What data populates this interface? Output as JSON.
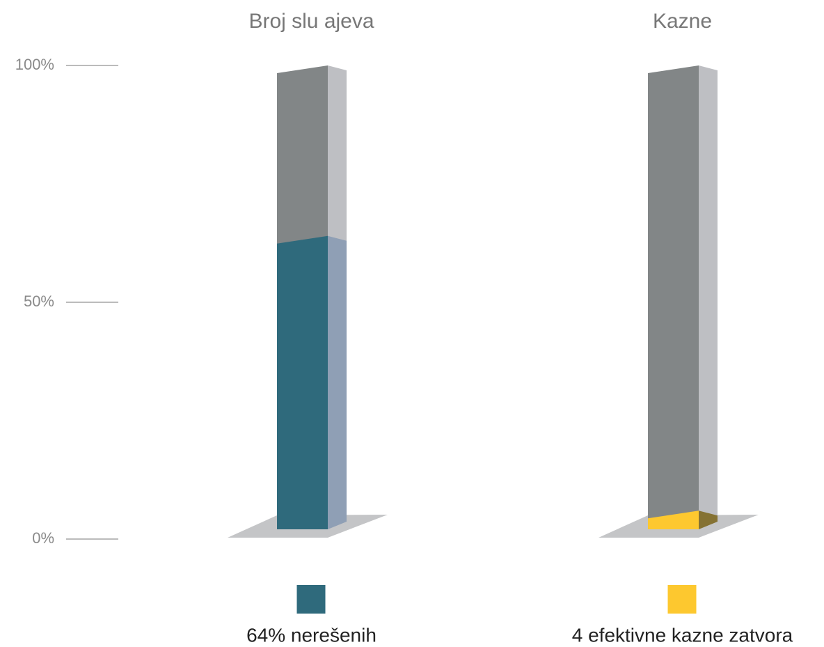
{
  "chart_data": {
    "type": "bar",
    "stacked": true,
    "categories": [
      "Broj slu ajeva",
      "Kazne"
    ],
    "series": [
      {
        "name": "64% nerešenih",
        "color": "#2f6a7c",
        "side_color": "#8f9fb5",
        "values": [
          64,
          null
        ]
      },
      {
        "name": "4 efektivne kazne zatvora",
        "color": "#fdc82f",
        "side_color": "#857233",
        "values": [
          null,
          6
        ]
      }
    ],
    "background_color": "#828687",
    "background_side_color": "#bebfc3",
    "ylim": [
      0,
      100
    ],
    "yticks": [
      {
        "value": 0,
        "label": "0%"
      },
      {
        "value": 50,
        "label": "50%"
      },
      {
        "value": 100,
        "label": "100%"
      }
    ]
  }
}
